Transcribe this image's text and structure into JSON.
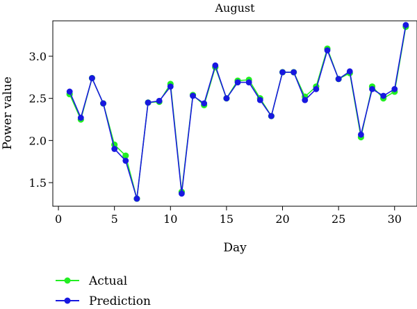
{
  "chart_data": {
    "type": "line",
    "title": "August",
    "xlabel": "Day",
    "ylabel": "Power value",
    "xlim": [
      -0.5,
      32
    ],
    "ylim": [
      1.22,
      3.42
    ],
    "xticks": [
      0,
      5,
      10,
      15,
      20,
      25,
      30
    ],
    "yticks": [
      1.5,
      2.0,
      2.5,
      3.0
    ],
    "grid": false,
    "legend_position": "bottom-left",
    "x": [
      1,
      2,
      3,
      4,
      5,
      6,
      7,
      8,
      9,
      10,
      11,
      12,
      13,
      14,
      15,
      16,
      17,
      18,
      19,
      20,
      21,
      22,
      23,
      24,
      25,
      26,
      27,
      28,
      29,
      30,
      31
    ],
    "series": [
      {
        "name": "Actual",
        "color": "#22ee22",
        "values": [
          2.55,
          2.25,
          2.74,
          2.44,
          1.95,
          1.82,
          1.31,
          2.45,
          2.46,
          2.67,
          1.39,
          2.54,
          2.42,
          2.87,
          2.5,
          2.71,
          2.72,
          2.5,
          2.29,
          2.81,
          2.81,
          2.52,
          2.64,
          3.09,
          2.73,
          2.8,
          2.04,
          2.64,
          2.5,
          2.58,
          3.35
        ]
      },
      {
        "name": "Prediction",
        "color": "#1818e0",
        "values": [
          2.58,
          2.27,
          2.74,
          2.44,
          1.9,
          1.76,
          1.31,
          2.45,
          2.47,
          2.64,
          1.37,
          2.53,
          2.44,
          2.89,
          2.5,
          2.69,
          2.69,
          2.48,
          2.29,
          2.81,
          2.81,
          2.48,
          2.61,
          3.07,
          2.73,
          2.82,
          2.07,
          2.61,
          2.53,
          2.61,
          3.37
        ]
      }
    ]
  }
}
